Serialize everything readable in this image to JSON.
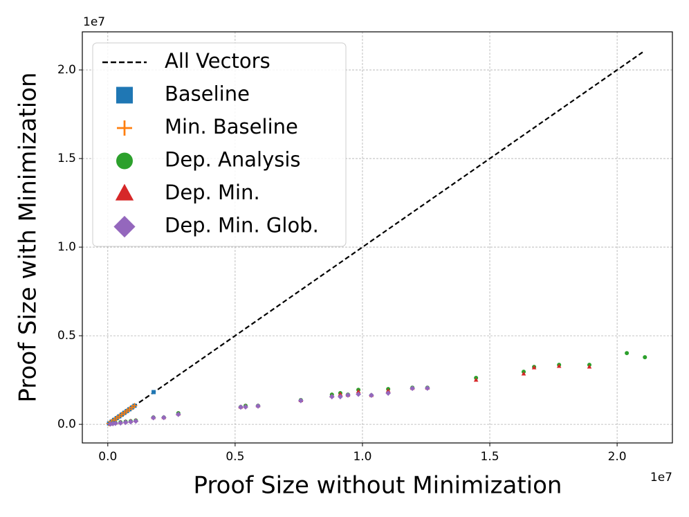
{
  "chart_data": {
    "type": "scatter",
    "xlabel": "Proof Size without Minimization",
    "ylabel": "Proof Size with Minimization",
    "x_offset_label": "1e7",
    "y_offset_label": "1e7",
    "xlim": [
      -1000000,
      22170000
    ],
    "ylim": [
      -1050000,
      22150000
    ],
    "xticks": [
      {
        "value": 0,
        "label": "0.0"
      },
      {
        "value": 5000000,
        "label": "0.5"
      },
      {
        "value": 10000000,
        "label": "1.0"
      },
      {
        "value": 15000000,
        "label": "1.5"
      },
      {
        "value": 20000000,
        "label": "2.0"
      }
    ],
    "yticks": [
      {
        "value": 0,
        "label": "0.0"
      },
      {
        "value": 5000000,
        "label": "0.5"
      },
      {
        "value": 10000000,
        "label": "1.0"
      },
      {
        "value": 15000000,
        "label": "1.5"
      },
      {
        "value": 20000000,
        "label": "2.0"
      }
    ],
    "grid": true,
    "legend": "upper left",
    "series": [
      {
        "name": "All Vectors",
        "color": "#000000",
        "marker": "dashed-line",
        "x": [
          0,
          21000000
        ],
        "values": [
          0,
          21000000
        ]
      },
      {
        "name": "Baseline",
        "color": "#1f77b4",
        "marker": "square",
        "x": [
          50000,
          150000,
          250000,
          350000,
          450000,
          550000,
          650000,
          750000,
          850000,
          950000,
          1050000,
          1800000
        ],
        "values": [
          50000,
          150000,
          250000,
          350000,
          450000,
          550000,
          650000,
          750000,
          850000,
          950000,
          1050000,
          1820000
        ]
      },
      {
        "name": "Min. Baseline",
        "color": "#ff7f0e",
        "marker": "plus",
        "x": [
          50000,
          150000,
          250000,
          350000,
          450000,
          550000,
          650000,
          750000,
          850000,
          950000,
          1050000
        ],
        "values": [
          50000,
          150000,
          250000,
          350000,
          450000,
          550000,
          650000,
          750000,
          850000,
          950000,
          1050000
        ]
      },
      {
        "name": "Dep. Analysis",
        "color": "#2ca02c",
        "marker": "circle",
        "x": [
          100000,
          200000,
          300000,
          500000,
          700000,
          900000,
          1100000,
          1790000,
          2200000,
          2770000,
          5220000,
          5410000,
          5900000,
          7580000,
          8800000,
          9130000,
          9430000,
          9840000,
          10350000,
          11010000,
          11960000,
          12550000,
          14460000,
          16330000,
          16740000,
          17720000,
          18910000,
          20380000,
          21090000
        ],
        "values": [
          30000,
          60000,
          90000,
          120000,
          150000,
          180000,
          220000,
          390000,
          390000,
          630000,
          980000,
          1050000,
          1050000,
          1370000,
          1680000,
          1760000,
          1680000,
          1950000,
          1640000,
          1990000,
          2070000,
          2070000,
          2620000,
          2970000,
          3240000,
          3360000,
          3360000,
          4020000,
          3790000
        ]
      },
      {
        "name": "Dep. Min.",
        "color": "#d62728",
        "marker": "triangle",
        "x": [
          100000,
          200000,
          300000,
          500000,
          700000,
          900000,
          1100000,
          1790000,
          2200000,
          2770000,
          5220000,
          5410000,
          5900000,
          7580000,
          8800000,
          9130000,
          9430000,
          9840000,
          10350000,
          11010000,
          11960000,
          12550000,
          14460000,
          16330000,
          16740000,
          17720000,
          18910000
        ],
        "values": [
          30000,
          60000,
          90000,
          120000,
          150000,
          180000,
          220000,
          390000,
          390000,
          590000,
          980000,
          1020000,
          1050000,
          1350000,
          1600000,
          1700000,
          1650000,
          1850000,
          1640000,
          1900000,
          2040000,
          2050000,
          2500000,
          2850000,
          3200000,
          3280000,
          3240000
        ]
      },
      {
        "name": "Dep. Min. Glob.",
        "color": "#9467bd",
        "marker": "diamond",
        "x": [
          100000,
          200000,
          300000,
          500000,
          700000,
          900000,
          1100000,
          1790000,
          2200000,
          2770000,
          5220000,
          5410000,
          5900000,
          7580000,
          8800000,
          9130000,
          9430000,
          9840000,
          10350000,
          11010000,
          11960000,
          12550000
        ],
        "values": [
          20000,
          40000,
          60000,
          80000,
          110000,
          140000,
          180000,
          370000,
          380000,
          560000,
          970000,
          980000,
          1030000,
          1340000,
          1560000,
          1560000,
          1650000,
          1700000,
          1640000,
          1760000,
          2030000,
          2040000
        ]
      }
    ]
  }
}
